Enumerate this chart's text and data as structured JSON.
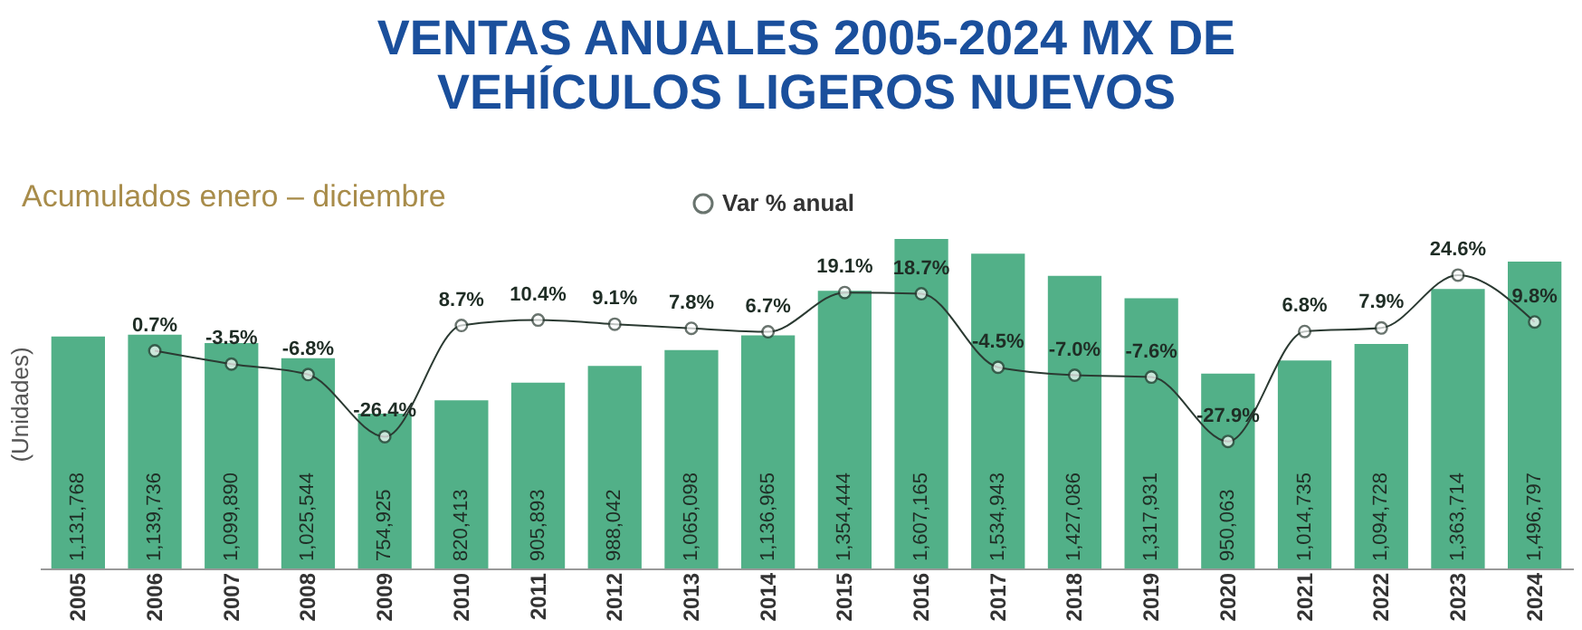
{
  "chart_data": {
    "type": "bar",
    "title": "VENTAS ANUALES 2005-2024 MX DE\nVEHÍCULOS LIGEROS NUEVOS",
    "subtitle": "Acumulados enero – diciembre",
    "ylabel": "(Unidades)",
    "categories": [
      "2005",
      "2006",
      "2007",
      "2008",
      "2009",
      "2010",
      "2011",
      "2012",
      "2013",
      "2014",
      "2015",
      "2016",
      "2017",
      "2018",
      "2019",
      "2020",
      "2021",
      "2022",
      "2023",
      "2024"
    ],
    "series": [
      {
        "color": "#52b088",
        "values": [
          1131768,
          1139736,
          1099890,
          1025544,
          754925,
          820413,
          905893,
          988042,
          1065098,
          1136965,
          1354444,
          1607165,
          1534943,
          1427086,
          1317931,
          950063,
          1014735,
          1094728,
          1363714,
          1496797
        ],
        "value_labels": [
          "1,131,768",
          "1,139,736",
          "1,099,890",
          "1,025,544",
          "754,925",
          "820,413",
          "905,893",
          "988,042",
          "1,065,098",
          "1,136,965",
          "1,354,444",
          "1,607,165",
          "1,534,943",
          "1,427,086",
          "1,317,931",
          "950,063",
          "1,014,735",
          "1,094,728",
          "1,363,714",
          "1,496,797"
        ]
      },
      {
        "type": "line",
        "name": "Var % anual",
        "axis": "y2",
        "color": "#2b3a32",
        "values": [
          null,
          0.7,
          -3.5,
          -6.8,
          -26.4,
          8.7,
          10.4,
          9.1,
          7.8,
          6.7,
          19.1,
          18.7,
          -4.5,
          -7.0,
          -7.6,
          -27.9,
          6.8,
          7.9,
          24.6,
          9.8
        ],
        "value_labels": [
          null,
          "0.7%",
          "-3.5%",
          "-6.8%",
          "-26.4%",
          "8.7%",
          "10.4%",
          "9.1%",
          "7.8%",
          "6.7%",
          "19.1%",
          "18.7%",
          "-4.5%",
          "-7.0%",
          "-7.6%",
          "-27.9%",
          "6.8%",
          "7.9%",
          "24.6%",
          "9.8%"
        ]
      }
    ],
    "y2lim": [
      -68,
      36
    ],
    "marker": "circle",
    "legend": "top",
    "grid": false,
    "tick_labels": "x"
  }
}
